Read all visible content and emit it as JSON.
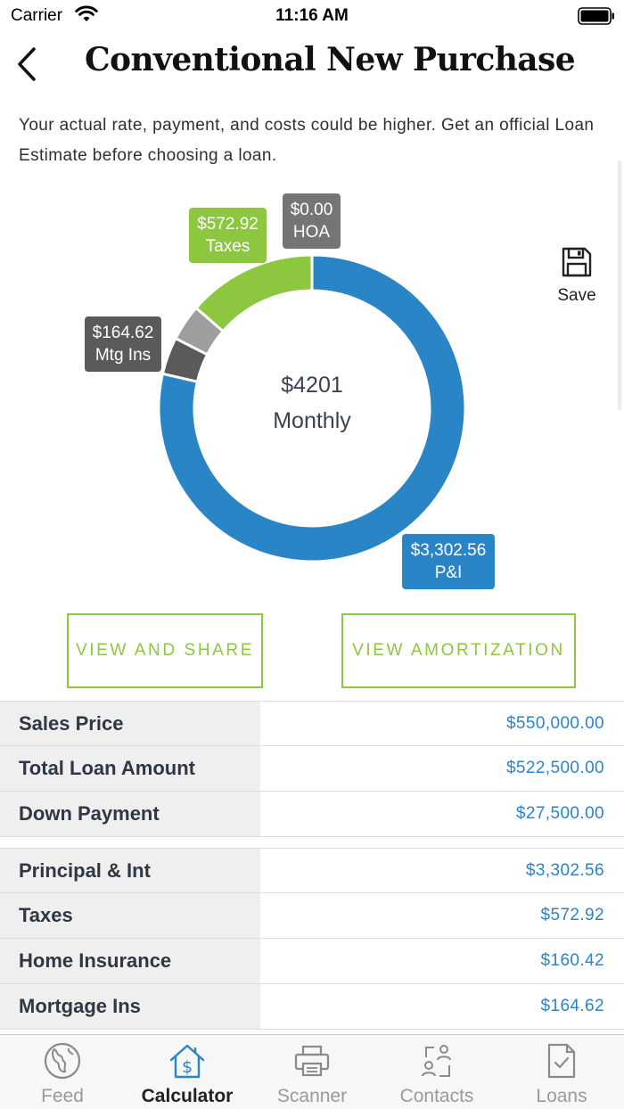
{
  "status_bar": {
    "carrier": "Carrier",
    "time": "11:16 AM"
  },
  "nav": {
    "title": "Conventional New Purchase"
  },
  "disclaimer": "Your actual rate, payment, and costs could be higher. Get an official Loan Estimate before choosing a loan.",
  "chart_data": {
    "type": "pie",
    "center_value": "$4201",
    "center_label": "Monthly",
    "slices": [
      {
        "name": "P&I",
        "value": 3302.56,
        "label": "$3,302.56",
        "color": "#2a85c7"
      },
      {
        "name": "Mtg Ins",
        "value": 164.62,
        "label": "$164.62",
        "color": "#5a5a5a"
      },
      {
        "name": "Home Insurance",
        "value": 160.42,
        "color": "#9e9e9e"
      },
      {
        "name": "Taxes",
        "value": 572.92,
        "label": "$572.92",
        "color": "#8dc63f"
      },
      {
        "name": "HOA",
        "value": 0.0,
        "label": "$0.00",
        "color": "#757575"
      }
    ]
  },
  "save": {
    "label": "Save",
    "icon": "floppy-disk-icon"
  },
  "buttons": {
    "view_share": "VIEW AND SHARE",
    "view_amortization": "VIEW AMORTIZATION"
  },
  "table1": [
    {
      "label": "Sales Price",
      "value": "$550,000.00"
    },
    {
      "label": "Total Loan Amount",
      "value": "$522,500.00"
    },
    {
      "label": "Down Payment",
      "value": "$27,500.00"
    }
  ],
  "table2": [
    {
      "label": "Principal & Int",
      "value": "$3,302.56"
    },
    {
      "label": "Taxes",
      "value": "$572.92"
    },
    {
      "label": "Home Insurance",
      "value": "$160.42"
    },
    {
      "label": "Mortgage Ins",
      "value": "$164.62"
    }
  ],
  "tabs": [
    {
      "label": "Feed",
      "icon": "globe-icon"
    },
    {
      "label": "Calculator",
      "icon": "house-dollar-icon",
      "active": true
    },
    {
      "label": "Scanner",
      "icon": "printer-icon"
    },
    {
      "label": "Contacts",
      "icon": "contacts-icon"
    },
    {
      "label": "Loans",
      "icon": "document-check-icon"
    }
  ],
  "colors": {
    "accent_green": "#8dc63f",
    "accent_blue": "#2a85c7"
  }
}
